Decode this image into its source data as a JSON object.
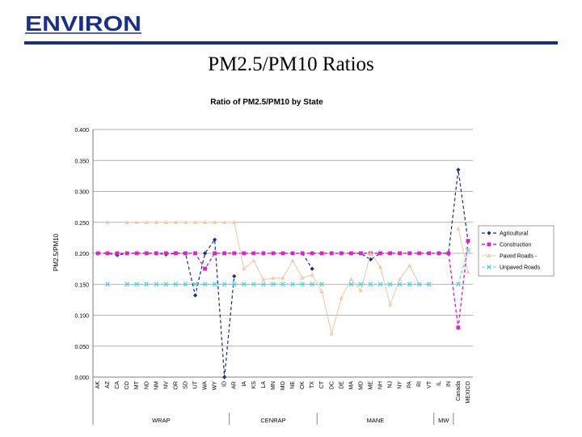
{
  "header": {
    "logo_text": "ENVIRON",
    "slide_title": "PM2.5/PM10 Ratios"
  },
  "colors": {
    "brand": "#1a2f8a",
    "agricultural": "#1a2a8a",
    "construction": "#e020c8",
    "paved": "#f4c9a4",
    "unpaved": "#4cd4de"
  },
  "chart_data": {
    "type": "line",
    "title": "Ratio of PM2.5/PM10 by State",
    "ylabel": "PM2.5/PM10",
    "xlabel": "",
    "ylim": [
      0,
      0.4
    ],
    "yticks": [
      "0.000",
      "0.050",
      "0.100",
      "0.150",
      "0.200",
      "0.250",
      "0.300",
      "0.350",
      "0.400"
    ],
    "grid": true,
    "legend_position": "right",
    "categories": [
      "AK",
      "AZ",
      "CA",
      "CO",
      "MT",
      "ND",
      "NM",
      "NV",
      "OR",
      "SD",
      "UT",
      "WA",
      "WY",
      "ID",
      "AR",
      "IA",
      "KS",
      "LA",
      "MN",
      "MO",
      "NE",
      "OK",
      "TX",
      "CT",
      "DC",
      "DE",
      "MA",
      "MD",
      "ME",
      "NH",
      "NJ",
      "NY",
      "PA",
      "RI",
      "VT",
      "IL",
      "IN",
      "Canada",
      "MEXICO"
    ],
    "groups": [
      {
        "name": "WRAP",
        "start": 0,
        "end": 13
      },
      {
        "name": "CENRAP",
        "start": 14,
        "end": 22
      },
      {
        "name": "MANE",
        "start": 23,
        "end": 34
      },
      {
        "name": "MW",
        "start": 35,
        "end": 36
      }
    ],
    "series": [
      {
        "name": "Agricultural",
        "values": [
          0.2,
          0.2,
          0.197,
          0.2,
          0.2,
          0.2,
          0.2,
          0.198,
          0.2,
          0.2,
          0.132,
          0.2,
          0.222,
          0,
          0.163,
          null,
          null,
          null,
          null,
          null,
          null,
          0.2,
          0.175,
          null,
          null,
          null,
          0.2,
          0.2,
          0.19,
          0.2,
          null,
          null,
          null,
          null,
          null,
          0.2,
          0.2,
          0.335,
          0.22
        ]
      },
      {
        "name": "Construction",
        "values": [
          0.2,
          0.2,
          0.2,
          0.2,
          0.2,
          0.2,
          0.2,
          0.2,
          0.2,
          0.2,
          0.2,
          0.175,
          0.2,
          0.2,
          0.2,
          0.2,
          0.2,
          0.2,
          0.2,
          0.2,
          0.2,
          0.2,
          0.2,
          0.2,
          0.2,
          0.2,
          0.2,
          0.2,
          0.2,
          0.2,
          0.2,
          0.2,
          0.2,
          0.2,
          0.2,
          0.2,
          0.2,
          0.08,
          0.22
        ]
      },
      {
        "name": "Paved Roads -",
        "values": [
          null,
          0.25,
          null,
          0.25,
          0.25,
          0.25,
          0.25,
          0.25,
          0.25,
          0.25,
          0.25,
          0.25,
          0.25,
          0.25,
          0.25,
          0.175,
          0.188,
          0.157,
          0.16,
          0.16,
          0.188,
          0.16,
          0.165,
          0.138,
          0.07,
          0.128,
          0.158,
          0.14,
          0.2,
          0.178,
          0.117,
          0.158,
          0.18,
          0.15,
          0.15,
          null,
          null,
          0.24,
          0.17
        ]
      },
      {
        "name": "Unpaved Roads",
        "values": [
          null,
          0.15,
          null,
          0.15,
          0.15,
          0.15,
          0.15,
          0.15,
          0.15,
          0.15,
          0.15,
          0.15,
          0.15,
          0.15,
          0.15,
          0.15,
          0.15,
          0.15,
          0.15,
          0.15,
          0.15,
          0.15,
          0.15,
          0.15,
          null,
          null,
          0.15,
          0.15,
          0.15,
          0.15,
          0.15,
          0.15,
          0.15,
          0.15,
          0.15,
          null,
          null,
          0.15,
          0.205
        ]
      }
    ]
  }
}
